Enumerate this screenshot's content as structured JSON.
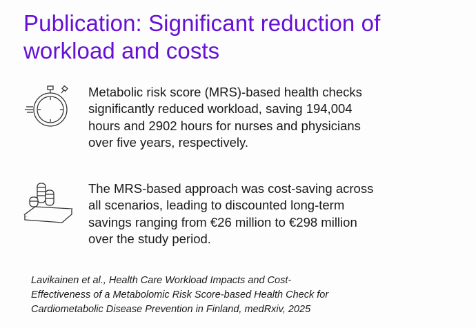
{
  "slide": {
    "title_line1": "Publication: Significant reduction of",
    "title_line2": "workload and costs",
    "accent_color": "#6610d6",
    "points": [
      {
        "icon": "stopwatch-icon",
        "lines": [
          "Metabolic risk score (MRS)-based health checks",
          "significantly reduced workload, saving 194,004",
          "hours and 2902 hours for nurses and physicians",
          "over five years, respectively."
        ]
      },
      {
        "icon": "coins-and-bills-icon",
        "lines": [
          "The MRS-based approach was cost-saving across",
          "all scenarios, leading to discounted long-term",
          "savings ranging from €26 million to €298 million",
          "over the study period."
        ]
      }
    ],
    "citation": [
      "Lavikainen et al., Health Care Workload Impacts and Cost-",
      "Effectiveness of a Metabolomic Risk Score-based Health Check for",
      "Cardiometabolic Disease Prevention in Finland, medRxiv, 2025"
    ]
  }
}
